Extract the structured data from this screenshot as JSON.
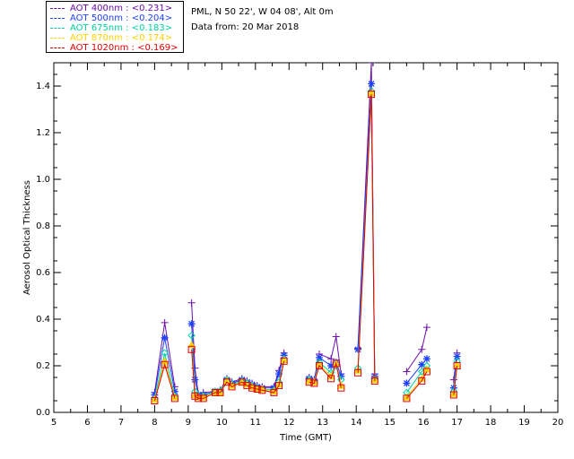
{
  "legend": {
    "items": [
      {
        "label": "AOT  400nm : <0.231>",
        "color": "#6a0dad"
      },
      {
        "label": "AOT  500nm : <0.204>",
        "color": "#1e40ff"
      },
      {
        "label": "AOT  675nm : <0.183>",
        "color": "#00d0a0"
      },
      {
        "label": "AOT  870nm : <0.174>",
        "color": "#ffd200"
      },
      {
        "label": "AOT 1020nm : <0.169>",
        "color": "#e00000"
      }
    ]
  },
  "info": {
    "site": "PML, N 50 22', W 04 08', Alt 0m",
    "date": "Data from: 20 Mar 2018"
  },
  "chart_data": {
    "type": "scatter",
    "xlabel": "Time (GMT)",
    "ylabel": "Aerosol Optical Thickness",
    "xlim": [
      5,
      20
    ],
    "ylim": [
      0,
      1.5
    ],
    "xticks": [
      "5",
      "6",
      "7",
      "8",
      "9",
      "10",
      "11",
      "12",
      "13",
      "14",
      "15",
      "16",
      "17",
      "18",
      "19",
      "20"
    ],
    "yticks": [
      "0.0",
      "0.2",
      "0.4",
      "0.6",
      "0.8",
      "1.0",
      "1.2",
      "1.4"
    ],
    "grid": false,
    "legend_position": "top-left",
    "x": [
      8.0,
      8.3,
      8.6,
      9.1,
      9.2,
      9.3,
      9.45,
      9.8,
      9.95,
      10.15,
      10.3,
      10.6,
      10.75,
      10.9,
      11.05,
      11.2,
      11.55,
      11.7,
      11.85,
      12.6,
      12.75,
      12.9,
      13.25,
      13.4,
      13.55,
      14.05,
      14.45,
      14.55,
      15.5,
      15.95,
      16.1,
      16.9,
      17.0
    ],
    "series": [
      {
        "name": "AOT  400nm",
        "marker": "+",
        "color": "#6a0dad",
        "values": [
          0.085,
          0.385,
          0.11,
          0.47,
          0.19,
          0.08,
          0.085,
          0.09,
          0.095,
          0.145,
          0.13,
          0.145,
          0.135,
          0.125,
          0.115,
          0.11,
          0.11,
          0.18,
          0.255,
          0.15,
          0.14,
          0.25,
          0.23,
          0.325,
          0.165,
          0.275,
          1.5,
          0.165,
          0.175,
          0.27,
          0.365,
          0.14,
          0.255
        ]
      },
      {
        "name": "AOT  500nm",
        "marker": "*",
        "color": "#1e40ff",
        "values": [
          0.075,
          0.32,
          0.09,
          0.38,
          0.14,
          0.075,
          0.075,
          0.09,
          0.09,
          0.14,
          0.125,
          0.14,
          0.13,
          0.12,
          0.11,
          0.105,
          0.105,
          0.165,
          0.245,
          0.145,
          0.135,
          0.235,
          0.2,
          0.215,
          0.155,
          0.27,
          1.41,
          0.155,
          0.125,
          0.205,
          0.23,
          0.105,
          0.24
        ]
      },
      {
        "name": "AOT  675nm",
        "marker": "diamond",
        "color": "#00d0a0",
        "values": [
          0.06,
          0.255,
          0.07,
          0.33,
          0.09,
          0.07,
          0.07,
          0.09,
          0.09,
          0.14,
          0.12,
          0.135,
          0.125,
          0.115,
          0.105,
          0.1,
          0.095,
          0.13,
          0.23,
          0.14,
          0.13,
          0.215,
          0.17,
          0.2,
          0.14,
          0.19,
          1.38,
          0.145,
          0.085,
          0.175,
          0.2,
          0.09,
          0.22
        ]
      },
      {
        "name": "AOT  870nm",
        "marker": "triangle",
        "color": "#ffd200",
        "values": [
          0.055,
          0.22,
          0.065,
          0.29,
          0.075,
          0.065,
          0.065,
          0.085,
          0.085,
          0.135,
          0.115,
          0.13,
          0.12,
          0.11,
          0.1,
          0.1,
          0.09,
          0.12,
          0.225,
          0.135,
          0.13,
          0.205,
          0.155,
          0.21,
          0.115,
          0.18,
          1.37,
          0.14,
          0.065,
          0.145,
          0.185,
          0.08,
          0.205
        ]
      },
      {
        "name": "AOT 1020nm",
        "marker": "square",
        "color": "#e00000",
        "values": [
          0.05,
          0.205,
          0.06,
          0.27,
          0.07,
          0.06,
          0.06,
          0.085,
          0.085,
          0.13,
          0.11,
          0.13,
          0.115,
          0.105,
          0.1,
          0.095,
          0.085,
          0.115,
          0.22,
          0.13,
          0.125,
          0.2,
          0.145,
          0.21,
          0.105,
          0.17,
          1.365,
          0.135,
          0.06,
          0.135,
          0.175,
          0.075,
          0.2
        ]
      }
    ]
  }
}
